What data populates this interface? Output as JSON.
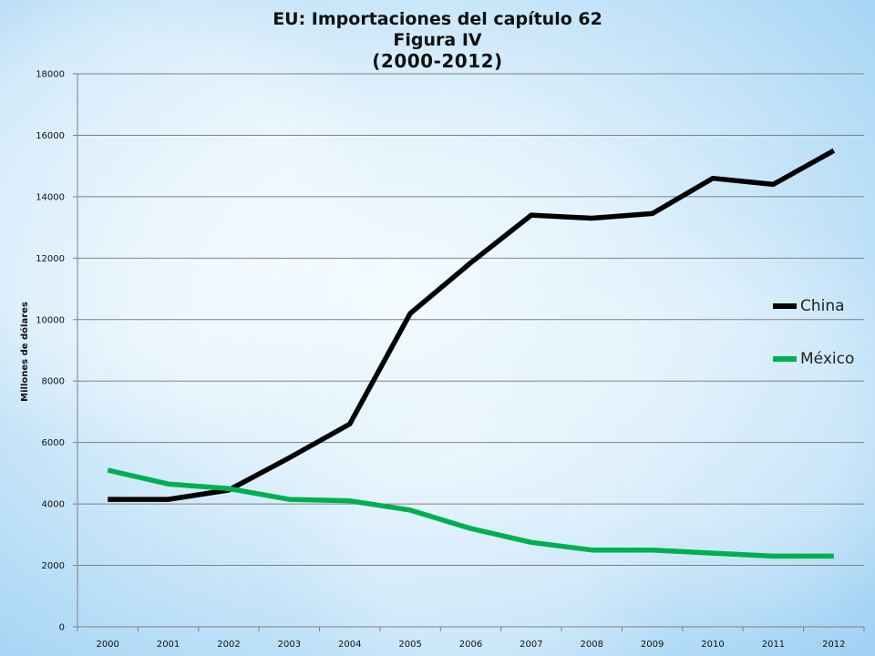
{
  "title": {
    "line1": "EU: Importaciones del capítulo 62",
    "line2": "Figura IV",
    "line3": "(2000-2012)"
  },
  "chart_data": {
    "type": "line",
    "title": "EU: Importaciones del capítulo 62 Figura IV (2000-2012)",
    "xlabel": "",
    "ylabel": "Millones de dólares",
    "ylim": [
      0,
      18000
    ],
    "yticks": [
      0,
      2000,
      4000,
      6000,
      8000,
      10000,
      12000,
      14000,
      16000,
      18000
    ],
    "categories": [
      "2000",
      "2001",
      "2002",
      "2003",
      "2004",
      "2005",
      "2006",
      "2007",
      "2008",
      "2009",
      "2010",
      "2011",
      "2012"
    ],
    "series": [
      {
        "name": "China",
        "color": "#000000",
        "values": [
          4150,
          4150,
          4450,
          5500,
          6600,
          10200,
          11850,
          13400,
          13300,
          13450,
          14600,
          14400,
          15500
        ]
      },
      {
        "name": "México",
        "color": "#00b050",
        "values": [
          5100,
          4650,
          4500,
          4150,
          4100,
          3800,
          3200,
          2750,
          2500,
          2500,
          2400,
          2300,
          2300
        ]
      }
    ],
    "grid": true,
    "legend_position": "right"
  }
}
